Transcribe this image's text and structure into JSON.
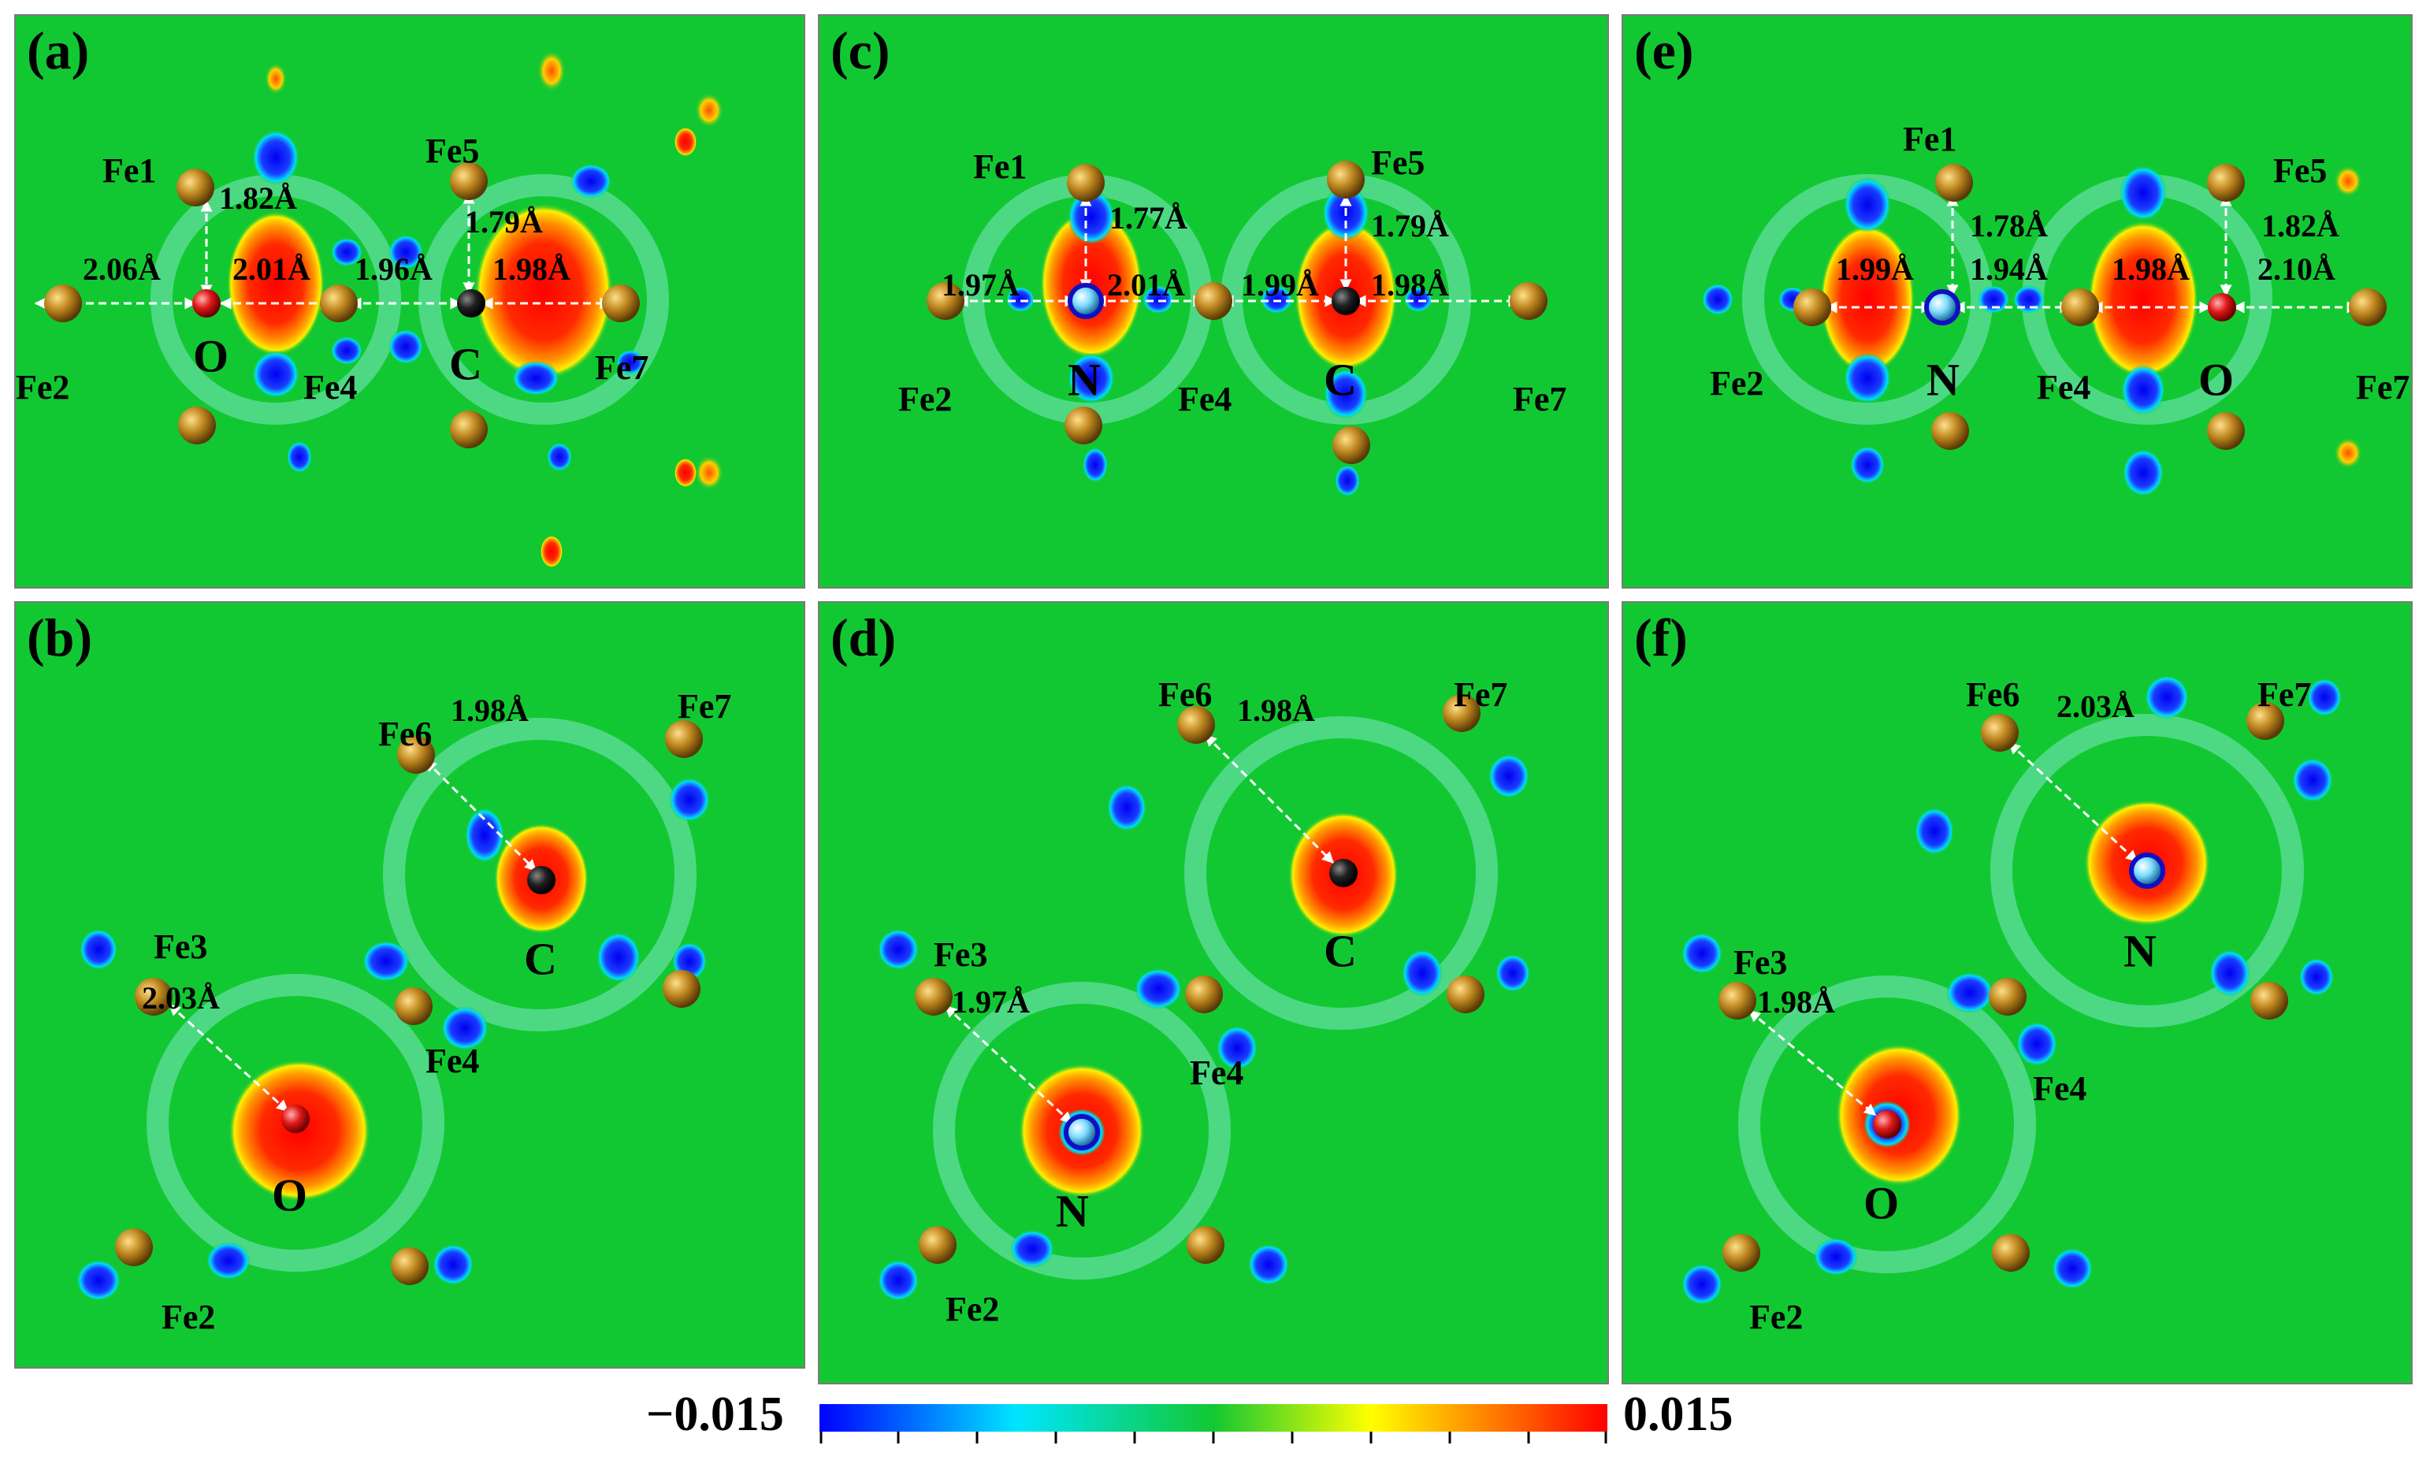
{
  "panels": [
    {
      "id": "a",
      "label": "(a)",
      "atoms": [
        {
          "symbol": "Fe1",
          "kind": "Fe"
        },
        {
          "symbol": "Fe2",
          "kind": "Fe"
        },
        {
          "symbol": "Fe4",
          "kind": "Fe"
        },
        {
          "symbol": "Fe5",
          "kind": "Fe"
        },
        {
          "symbol": "Fe7",
          "kind": "Fe"
        },
        {
          "symbol": "O",
          "kind": "O"
        },
        {
          "symbol": "C",
          "kind": "C"
        }
      ],
      "distances": [
        "1.82Å",
        "2.06Å",
        "2.01Å",
        "1.96Å",
        "1.79Å",
        "1.98Å"
      ]
    },
    {
      "id": "b",
      "label": "(b)",
      "atoms": [
        {
          "symbol": "Fe6",
          "kind": "Fe"
        },
        {
          "symbol": "Fe7",
          "kind": "Fe"
        },
        {
          "symbol": "Fe3",
          "kind": "Fe"
        },
        {
          "symbol": "Fe4",
          "kind": "Fe"
        },
        {
          "symbol": "Fe2",
          "kind": "Fe"
        },
        {
          "symbol": "O",
          "kind": "O"
        },
        {
          "symbol": "C",
          "kind": "C"
        }
      ],
      "distances": [
        "1.98Å",
        "2.03Å"
      ]
    },
    {
      "id": "c",
      "label": "(c)",
      "atoms": [
        {
          "symbol": "Fe1",
          "kind": "Fe"
        },
        {
          "symbol": "Fe5",
          "kind": "Fe"
        },
        {
          "symbol": "Fe2",
          "kind": "Fe"
        },
        {
          "symbol": "Fe4",
          "kind": "Fe"
        },
        {
          "symbol": "Fe7",
          "kind": "Fe"
        },
        {
          "symbol": "N",
          "kind": "N"
        },
        {
          "symbol": "C",
          "kind": "C"
        }
      ],
      "distances": [
        "1.77Å",
        "1.79Å",
        "1.97Å",
        "2.01Å",
        "1.99Å",
        "1.98Å"
      ]
    },
    {
      "id": "d",
      "label": "(d)",
      "atoms": [
        {
          "symbol": "Fe6",
          "kind": "Fe"
        },
        {
          "symbol": "Fe7",
          "kind": "Fe"
        },
        {
          "symbol": "Fe3",
          "kind": "Fe"
        },
        {
          "symbol": "Fe4",
          "kind": "Fe"
        },
        {
          "symbol": "Fe2",
          "kind": "Fe"
        },
        {
          "symbol": "N",
          "kind": "N"
        },
        {
          "symbol": "C",
          "kind": "C"
        }
      ],
      "distances": [
        "1.98Å",
        "1.97Å"
      ]
    },
    {
      "id": "e",
      "label": "(e)",
      "atoms": [
        {
          "symbol": "Fe1",
          "kind": "Fe"
        },
        {
          "symbol": "Fe5",
          "kind": "Fe"
        },
        {
          "symbol": "Fe2",
          "kind": "Fe"
        },
        {
          "symbol": "Fe4",
          "kind": "Fe"
        },
        {
          "symbol": "Fe7",
          "kind": "Fe"
        },
        {
          "symbol": "N",
          "kind": "N"
        },
        {
          "symbol": "O",
          "kind": "O"
        }
      ],
      "distances": [
        "1.78Å",
        "1.82Å",
        "1.99Å",
        "1.94Å",
        "1.98Å",
        "2.10Å"
      ]
    },
    {
      "id": "f",
      "label": "(f)",
      "atoms": [
        {
          "symbol": "Fe6",
          "kind": "Fe"
        },
        {
          "symbol": "Fe7",
          "kind": "Fe"
        },
        {
          "symbol": "Fe3",
          "kind": "Fe"
        },
        {
          "symbol": "Fe4",
          "kind": "Fe"
        },
        {
          "symbol": "Fe2",
          "kind": "Fe"
        },
        {
          "symbol": "O",
          "kind": "O"
        },
        {
          "symbol": "N",
          "kind": "N"
        }
      ],
      "distances": [
        "2.03Å",
        "1.98Å"
      ]
    }
  ],
  "colorbar": {
    "min_label": "−0.015",
    "max_label": "0.015",
    "min": -0.015,
    "max": 0.015,
    "colors": [
      "#0000ff",
      "#00e5ff",
      "#12c832",
      "#ffff00",
      "#ff8000",
      "#ff0000"
    ]
  },
  "colors": {
    "background": "#12c832",
    "depletion": "#1a1aff",
    "accumulation": "#ff1a1a",
    "Fe": "#b07818",
    "O": "#e02020",
    "C": "#151515",
    "N": "#80e0ff"
  }
}
